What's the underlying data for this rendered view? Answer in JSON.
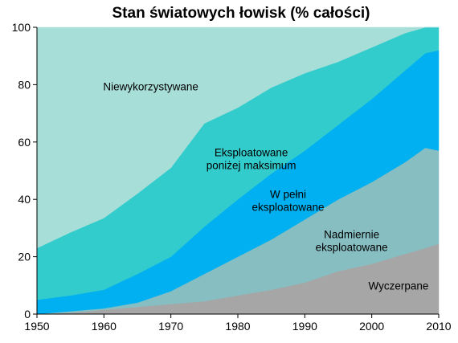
{
  "chart_data": {
    "type": "area",
    "stacked": true,
    "title": "Stan światowych łowisk (% całości)",
    "xlabel": "",
    "ylabel": "",
    "xlim": [
      1950,
      2010
    ],
    "ylim": [
      0,
      100
    ],
    "xticks": [
      1950,
      1960,
      1970,
      1980,
      1990,
      2000,
      2010
    ],
    "yticks": [
      0,
      20,
      40,
      60,
      80,
      100
    ],
    "grid": false,
    "legend": "none",
    "x": [
      1950,
      1955,
      1960,
      1965,
      1970,
      1975,
      1980,
      1985,
      1990,
      1995,
      2000,
      2005,
      2008,
      2010
    ],
    "series": [
      {
        "name": "Wyczerpane",
        "color": "#a6a6a6",
        "values": [
          0,
          0.5,
          1.5,
          2.5,
          3.5,
          4.5,
          6.5,
          8.5,
          11,
          15,
          17.5,
          21,
          23,
          24.5
        ]
      },
      {
        "name": "Nadmiernie eksploatowane",
        "color": "#86bec2",
        "values": [
          0,
          0.5,
          0.5,
          1.5,
          4.5,
          9.5,
          13.5,
          17.5,
          22,
          25,
          28.5,
          32,
          35,
          32.5
        ]
      },
      {
        "name": "W pełni eksploatowane",
        "color": "#00b0f0",
        "values": [
          5,
          5.5,
          6.5,
          10,
          12,
          16.5,
          20,
          23,
          24,
          26,
          29,
          32,
          33,
          35
        ]
      },
      {
        "name": "Eksploatowane poniżej maksimum",
        "color": "#33cccc",
        "values": [
          18,
          22,
          25,
          28,
          31,
          36,
          32,
          30,
          27,
          22,
          18,
          13,
          9,
          8
        ]
      },
      {
        "name": "Niewykorzystywane",
        "color": "#a8ded8",
        "values": [
          77,
          71.5,
          66.5,
          58,
          49,
          33.5,
          28,
          21,
          16,
          12,
          7,
          2,
          0,
          0
        ]
      }
    ],
    "annotations": [
      {
        "text": "Niewykorzystywane",
        "x": 1967,
        "y": 78
      },
      {
        "text": "Eksploatowane",
        "x": 1982,
        "y": 55
      },
      {
        "text": "poniżej maksimum",
        "x": 1982,
        "y": 50.5
      },
      {
        "text": "W pełni",
        "x": 1987.5,
        "y": 40.5
      },
      {
        "text": "eksploatowane",
        "x": 1987.5,
        "y": 36
      },
      {
        "text": "Nadmiernie",
        "x": 1997,
        "y": 26.5
      },
      {
        "text": "eksploatowane",
        "x": 1997,
        "y": 22
      },
      {
        "text": "Wyczerpane",
        "x": 2004,
        "y": 8.5
      }
    ]
  }
}
